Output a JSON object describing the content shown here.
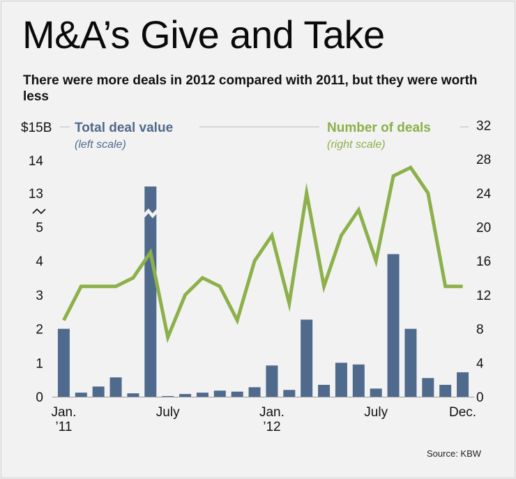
{
  "title": "M&A’s Give and Take",
  "subtitle": "There were more deals in 2012 compared with 2011, but they were worth less",
  "source": "Source: KBW",
  "colors": {
    "bar": "#4f6a8c",
    "line": "#8cb04a",
    "text": "#111111",
    "grid": "#bbbbbb",
    "background": "#f2f2f2"
  },
  "chart_data": {
    "type": "bar+line",
    "title": "M&A’s Give and Take",
    "categories": [
      "Jan. 2011",
      "Feb. 2011",
      "Mar. 2011",
      "Apr. 2011",
      "May 2011",
      "Jun. 2011",
      "Jul. 2011",
      "Aug. 2011",
      "Sep. 2011",
      "Oct. 2011",
      "Nov. 2011",
      "Dec. 2011",
      "Jan. 2012",
      "Feb. 2012",
      "Mar. 2012",
      "Apr. 2012",
      "May 2012",
      "Jun. 2012",
      "Jul. 2012",
      "Aug. 2012",
      "Sep. 2012",
      "Oct. 2012",
      "Nov. 2012",
      "Dec. 2012"
    ],
    "x_tick_labels": [
      {
        "index": 0,
        "lines": [
          "Jan.",
          "’11"
        ]
      },
      {
        "index": 6,
        "lines": [
          "July"
        ]
      },
      {
        "index": 12,
        "lines": [
          "Jan.",
          "’12"
        ]
      },
      {
        "index": 18,
        "lines": [
          "July"
        ]
      },
      {
        "index": 23,
        "lines": [
          "Dec."
        ]
      }
    ],
    "series": [
      {
        "name": "Total deal value",
        "note": "(left scale)",
        "kind": "bar",
        "axis": "left",
        "unit": "billion dollars",
        "values": [
          2.0,
          0.12,
          0.3,
          0.57,
          0.1,
          13.2,
          0.02,
          0.08,
          0.12,
          0.18,
          0.15,
          0.28,
          0.92,
          0.2,
          2.27,
          0.35,
          1.0,
          0.95,
          0.24,
          4.2,
          2.0,
          0.55,
          0.35,
          0.72
        ]
      },
      {
        "name": "Number of deals",
        "note": "(right scale)",
        "kind": "line",
        "axis": "right",
        "values": [
          9,
          13,
          13,
          13,
          14,
          17,
          7,
          12,
          14,
          13,
          9,
          16,
          19,
          11,
          24,
          13,
          19,
          22,
          16,
          26,
          27,
          24,
          13,
          13
        ]
      }
    ],
    "left_axis": {
      "ticks": [
        "0",
        "1",
        "2",
        "3",
        "4",
        "5",
        "13",
        "14",
        "$15B"
      ],
      "lower_range": [
        0,
        5
      ],
      "upper_range": [
        13,
        15
      ],
      "break_between": [
        5,
        13
      ]
    },
    "right_axis": {
      "ticks": [
        "0",
        "4",
        "8",
        "12",
        "16",
        "20",
        "24",
        "28",
        "32"
      ],
      "range": [
        0,
        32
      ]
    }
  }
}
